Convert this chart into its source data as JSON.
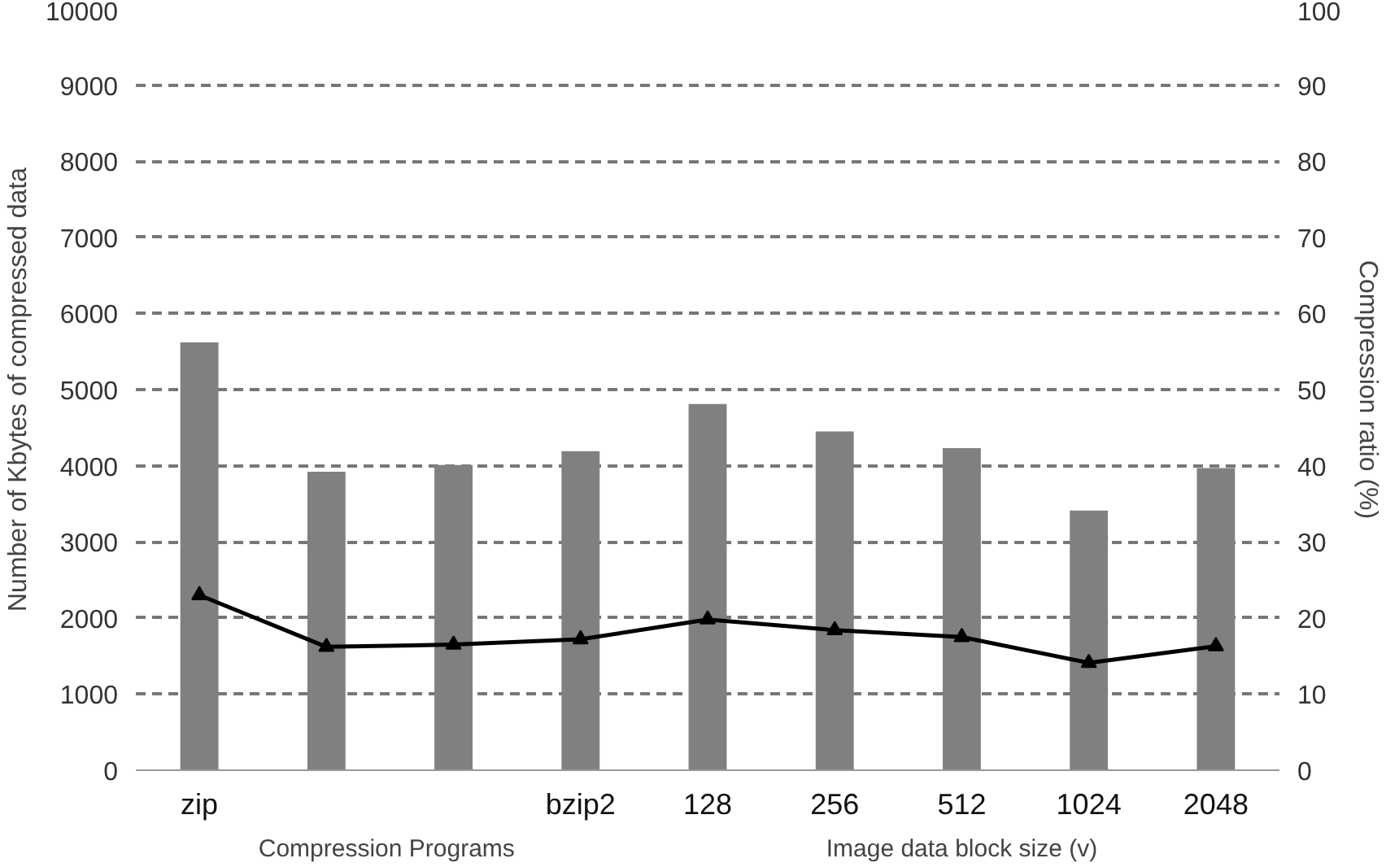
{
  "chart_data": {
    "type": "bar",
    "ylabel": "Number of Kbytes of compressed data",
    "y2label": "Compression ratio (%)",
    "categories": [
      "zip",
      null,
      null,
      "bzip2",
      "128",
      "256",
      "512",
      "1024",
      "2048"
    ],
    "series": [
      {
        "color": "#808080",
        "values": [
          5620,
          3920,
          4010,
          4190,
          4810,
          4450,
          4230,
          3410,
          3970
        ]
      },
      {
        "type": "line",
        "axis": "y2",
        "color": "#000000",
        "marker": "triangle",
        "values": [
          23.0,
          16.2,
          16.5,
          17.2,
          19.8,
          18.4,
          17.5,
          14.1,
          16.3
        ]
      }
    ],
    "ylim": [
      0,
      10000
    ],
    "yticks": [
      0,
      1000,
      2000,
      3000,
      4000,
      5000,
      6000,
      7000,
      8000,
      9000,
      10000
    ],
    "y2lim": [
      0,
      100
    ],
    "y2ticks": [
      0,
      10,
      20,
      30,
      40,
      50,
      60,
      70,
      80,
      90,
      100
    ],
    "grid": "y",
    "annotations": [
      "Compression  Programs",
      "Image data block size (v)"
    ]
  }
}
